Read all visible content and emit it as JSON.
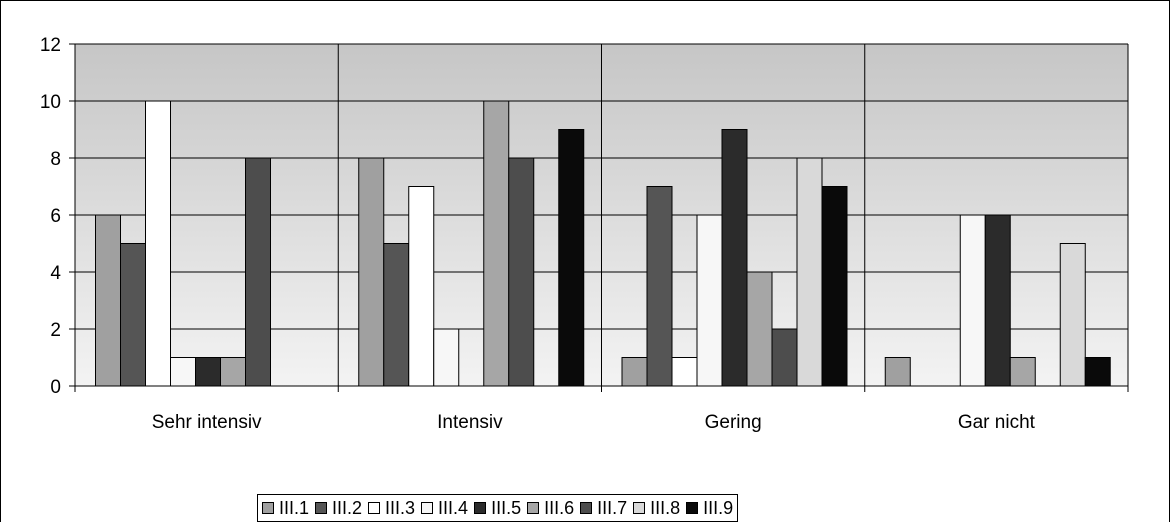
{
  "chart_data": {
    "type": "bar",
    "categories": [
      "Sehr intensiv",
      "Intensiv",
      "Gering",
      "Gar nicht"
    ],
    "ylim": [
      0,
      12
    ],
    "yticks": [
      0,
      2,
      4,
      6,
      8,
      10,
      12
    ],
    "ytick_labels": [
      "0",
      "2",
      "4",
      "6",
      "8",
      "10",
      "12"
    ],
    "grid": true,
    "legend_position": "bottom",
    "series": [
      {
        "name": "III.1",
        "color": "#a0a0a0",
        "values": [
          6,
          8,
          1,
          1
        ]
      },
      {
        "name": "III.2",
        "color": "#555555",
        "values": [
          5,
          5,
          7,
          0
        ]
      },
      {
        "name": "III.3",
        "color": "#ffffff",
        "values": [
          10,
          7,
          1,
          0
        ]
      },
      {
        "name": "III.4",
        "color": "#f7f7f7",
        "values": [
          1,
          2,
          6,
          6
        ]
      },
      {
        "name": "III.5",
        "color": "#2b2b2b",
        "values": [
          1,
          0,
          9,
          6
        ]
      },
      {
        "name": "III.6",
        "color": "#a6a6a6",
        "values": [
          1,
          10,
          4,
          1
        ]
      },
      {
        "name": "III.7",
        "color": "#4d4d4d",
        "values": [
          8,
          8,
          2,
          0
        ]
      },
      {
        "name": "III.8",
        "color": "#d9d9d9",
        "values": [
          0,
          0,
          8,
          5
        ]
      },
      {
        "name": "III.9",
        "color": "#0a0a0a",
        "values": [
          0,
          9,
          7,
          1
        ]
      }
    ]
  }
}
